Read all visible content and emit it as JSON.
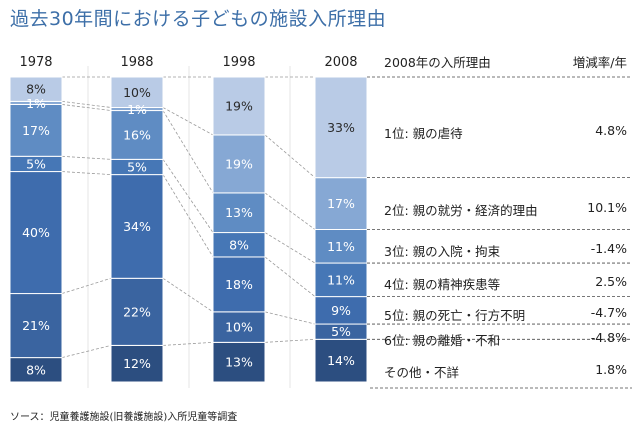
{
  "title": "過去30年間における子どもの施設入所理由",
  "source": "ソース：児童養護施設(旧養護施設)入所児童等調査",
  "colors": {
    "title": "#3d6fa8",
    "segment_shades": [
      "#2c4e80",
      "#3a64a0",
      "#3e6cad",
      "#4677b6",
      "#5f8cc3",
      "#86a8d4",
      "#b9cbe6"
    ]
  },
  "chart_data": {
    "type": "bar",
    "stacked": true,
    "percent": true,
    "categories": [
      "1978",
      "1988",
      "1998",
      "2008"
    ],
    "segment_order_bottom_to_top": [
      "その他・不詳",
      "親の離婚・不和",
      "親の死亡・行方不明",
      "親の精神疾患等",
      "親の入院・拘束",
      "親の就労・経済的理由",
      "親の虐待"
    ],
    "columns": [
      {
        "year": "1978",
        "segments": [
          {
            "value": 8,
            "label": "8%"
          },
          {
            "value": 21,
            "label": "21%"
          },
          {
            "value": 40,
            "label": "40%"
          },
          {
            "value": 5,
            "label": "5%"
          },
          {
            "value": 17,
            "label": "17%"
          },
          {
            "value": 1,
            "label": "1%"
          },
          {
            "value": 8,
            "label": "8%"
          }
        ]
      },
      {
        "year": "1988",
        "segments": [
          {
            "value": 12,
            "label": "12%"
          },
          {
            "value": 22,
            "label": "22%"
          },
          {
            "value": 34,
            "label": "34%"
          },
          {
            "value": 5,
            "label": "5%"
          },
          {
            "value": 16,
            "label": "16%"
          },
          {
            "value": 1,
            "label": "1%"
          },
          {
            "value": 10,
            "label": "10%"
          }
        ]
      },
      {
        "year": "1998",
        "segments": [
          {
            "value": 13,
            "label": "13%"
          },
          {
            "value": 10,
            "label": "10%"
          },
          {
            "value": 18,
            "label": "18%"
          },
          {
            "value": 8,
            "label": "8%"
          },
          {
            "value": 13,
            "label": "13%"
          },
          {
            "value": 19,
            "label": "19%"
          },
          {
            "value": 19,
            "label": "19%"
          }
        ]
      },
      {
        "year": "2008",
        "segments": [
          {
            "value": 14,
            "label": "14%"
          },
          {
            "value": 5,
            "label": "5%"
          },
          {
            "value": 9,
            "label": "9%"
          },
          {
            "value": 11,
            "label": "11%"
          },
          {
            "value": 11,
            "label": "11%"
          },
          {
            "value": 17,
            "label": "17%"
          },
          {
            "value": 33,
            "label": "33%"
          }
        ]
      }
    ]
  },
  "table": {
    "header_reason": "2008年の入所理由",
    "header_rate": "増減率/年",
    "rows": [
      {
        "reason": "1位: 親の虐待",
        "rate": "4.8%"
      },
      {
        "reason": "2位: 親の就労・経済的理由",
        "rate": "10.1%"
      },
      {
        "reason": "3位: 親の入院・拘束",
        "rate": "-1.4%"
      },
      {
        "reason": "4位: 親の精神疾患等",
        "rate": "2.5%"
      },
      {
        "reason": "5位: 親の死亡・行方不明",
        "rate": "-4.7%"
      },
      {
        "reason": "6位: 親の離婚・不和",
        "rate": "-4.8%"
      },
      {
        "reason": "その他・不詳",
        "rate": "1.8%"
      }
    ]
  }
}
